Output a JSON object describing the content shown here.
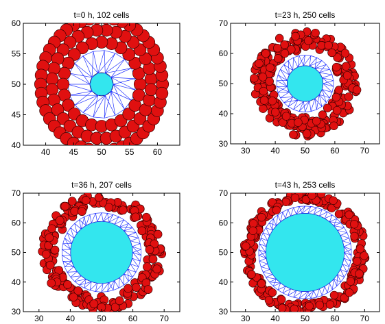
{
  "chart_data": [
    {
      "type": "scatter",
      "title": "t=0 h, 102 cells",
      "xlim": [
        36,
        64
      ],
      "ylim": [
        40,
        60
      ],
      "xticks": [
        40,
        45,
        50,
        55,
        60
      ],
      "yticks": [
        40,
        45,
        50,
        55,
        60
      ],
      "grid": false,
      "core": {
        "cx": 50,
        "cy": 50,
        "r": 2.0
      },
      "mesh_ring": {
        "inner_r": 2.0,
        "outer_r": 5.8
      },
      "cells": {
        "count": 102,
        "radius": 1.05,
        "rings": [
          {
            "r": 6.9,
            "n": 24
          },
          {
            "r": 8.9,
            "n": 32
          },
          {
            "r": 10.9,
            "n": 46
          }
        ]
      },
      "colors": {
        "core": "#33e6ee",
        "mesh": "#2233ff",
        "cells": "#e01010",
        "cell_edge": "#3a0000"
      }
    },
    {
      "type": "scatter",
      "title": "t=23 h, 250 cells",
      "xlim": [
        25,
        75
      ],
      "ylim": [
        30,
        70
      ],
      "xticks": [
        30,
        40,
        50,
        60,
        70
      ],
      "yticks": [
        30,
        40,
        50,
        60,
        70
      ],
      "grid": false,
      "core": {
        "cx": 50,
        "cy": 50,
        "r": 6.0
      },
      "mesh_ring": {
        "inner_r": 6.0,
        "outer_r": 9.5
      },
      "cells": {
        "count": 250,
        "radius": 1.35,
        "band": [
          9.8,
          17.5
        ]
      },
      "colors": {
        "core": "#33e6ee",
        "mesh": "#2233ff",
        "cells": "#e01010",
        "cell_edge": "#3a0000"
      }
    },
    {
      "type": "scatter",
      "title": "t=36 h, 207 cells",
      "xlim": [
        25,
        75
      ],
      "ylim": [
        30,
        70
      ],
      "xticks": [
        30,
        40,
        50,
        60,
        70
      ],
      "yticks": [
        30,
        40,
        50,
        60,
        70
      ],
      "grid": false,
      "core": {
        "cx": 50,
        "cy": 50,
        "r": 10.2
      },
      "mesh_ring": {
        "inner_r": 10.2,
        "outer_r": 13.0
      },
      "cells": {
        "count": 207,
        "radius": 1.35,
        "band": [
          13.4,
          19.5
        ]
      },
      "colors": {
        "core": "#33e6ee",
        "mesh": "#2233ff",
        "cells": "#e01010",
        "cell_edge": "#3a0000"
      }
    },
    {
      "type": "scatter",
      "title": "t=43 h, 253 cells",
      "xlim": [
        25,
        75
      ],
      "ylim": [
        30,
        70
      ],
      "xticks": [
        30,
        40,
        50,
        60,
        70
      ],
      "yticks": [
        30,
        40,
        50,
        60,
        70
      ],
      "grid": false,
      "core": {
        "cx": 50,
        "cy": 50,
        "r": 13.2
      },
      "mesh_ring": {
        "inner_r": 13.2,
        "outer_r": 15.6
      },
      "cells": {
        "count": 253,
        "radius": 1.35,
        "band": [
          15.9,
          20.5
        ]
      },
      "colors": {
        "core": "#33e6ee",
        "mesh": "#2233ff",
        "cells": "#e01010",
        "cell_edge": "#3a0000"
      }
    }
  ]
}
